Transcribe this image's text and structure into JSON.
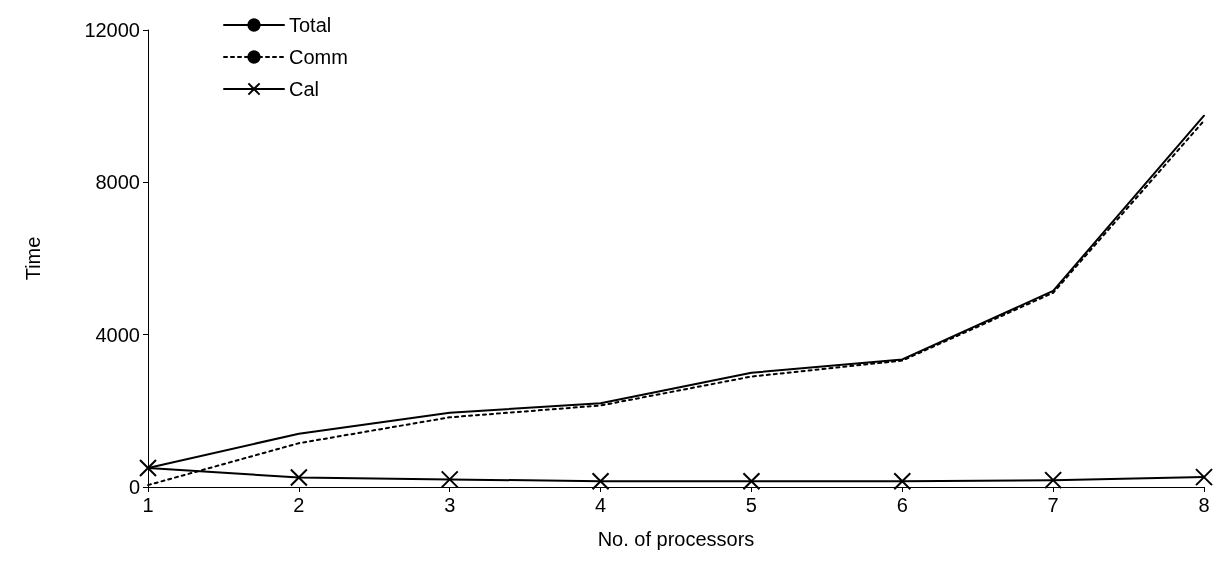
{
  "chart_data": {
    "type": "line",
    "xlabel": "No. of processors",
    "ylabel": "Time",
    "categories": [
      "1",
      "2",
      "3",
      "4",
      "5",
      "6",
      "7",
      "8"
    ],
    "ylim": [
      0,
      12000
    ],
    "yticks": [
      0,
      4000,
      8000,
      12000
    ],
    "grid": false,
    "legend": "top left",
    "series": [
      {
        "name": "Total",
        "color": "#000000",
        "line_style": "solid",
        "marker": "none",
        "values": [
          500,
          1400,
          1950,
          2200,
          3000,
          3350,
          5150,
          9750
        ]
      },
      {
        "name": "Comm",
        "color": "#000000",
        "line_style": "dotted",
        "marker": "none",
        "values": [
          50,
          1150,
          1830,
          2140,
          2900,
          3320,
          5100,
          9620
        ]
      },
      {
        "name": "Cal",
        "color": "#000000",
        "line_style": "solid",
        "marker": "cross",
        "values": [
          500,
          250,
          200,
          150,
          150,
          150,
          180,
          260
        ]
      }
    ]
  }
}
